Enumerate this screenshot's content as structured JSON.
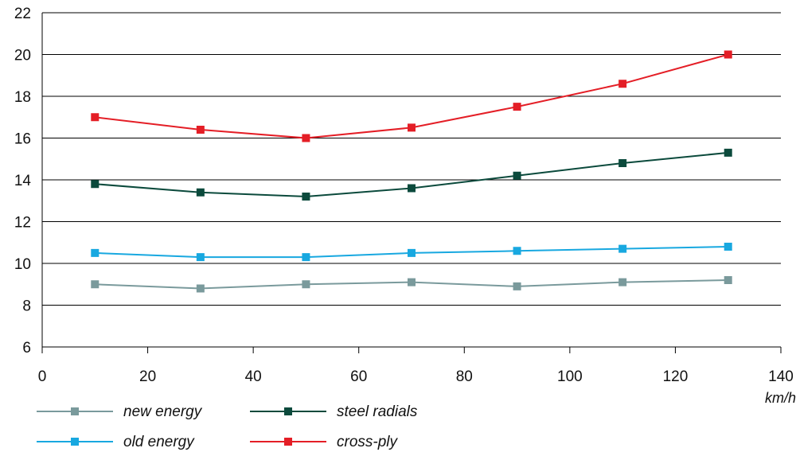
{
  "chart_data": {
    "type": "line",
    "title": "",
    "xlabel": "km/h",
    "ylabel": "",
    "xlim": [
      0,
      140
    ],
    "ylim": [
      6,
      22
    ],
    "x_ticks": [
      0,
      20,
      40,
      60,
      80,
      100,
      120,
      140
    ],
    "y_ticks": [
      6,
      8,
      10,
      12,
      14,
      16,
      18,
      20,
      22
    ],
    "grid": "horizontal",
    "legend_position": "bottom",
    "x": [
      10,
      30,
      50,
      70,
      90,
      110,
      130
    ],
    "series": [
      {
        "name": "new energy",
        "color": "#7a9a9c",
        "values": [
          9.0,
          8.8,
          9.0,
          9.1,
          8.9,
          9.1,
          9.2
        ]
      },
      {
        "name": "steel radials",
        "color": "#0b4a3c",
        "values": [
          13.8,
          13.4,
          13.2,
          13.6,
          14.2,
          14.8,
          15.3
        ]
      },
      {
        "name": "old energy",
        "color": "#18a8e0",
        "values": [
          10.5,
          10.3,
          10.3,
          10.5,
          10.6,
          10.7,
          10.8
        ]
      },
      {
        "name": "cross-ply",
        "color": "#e41e26",
        "values": [
          17.0,
          16.4,
          16.0,
          16.5,
          17.5,
          18.6,
          20.0
        ]
      }
    ]
  }
}
